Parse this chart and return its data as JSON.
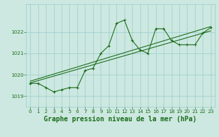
{
  "title": "Graphe pression niveau de la mer (hPa)",
  "bg_color": "#cce8e0",
  "grid_color": "#99cccc",
  "line_color": "#1a6b1a",
  "text_color": "#1a6b1a",
  "xlim": [
    -0.5,
    23.5
  ],
  "ylim": [
    1018.5,
    1023.3
  ],
  "yticks": [
    1019,
    1020,
    1021,
    1022
  ],
  "xticks": [
    0,
    1,
    2,
    3,
    4,
    5,
    6,
    7,
    8,
    9,
    10,
    11,
    12,
    13,
    14,
    15,
    16,
    17,
    18,
    19,
    20,
    21,
    22,
    23
  ],
  "hours": [
    0,
    1,
    2,
    3,
    4,
    5,
    6,
    7,
    8,
    9,
    10,
    11,
    12,
    13,
    14,
    15,
    16,
    17,
    18,
    19,
    20,
    21,
    22,
    23
  ],
  "pressure": [
    1019.6,
    1019.6,
    1019.4,
    1019.2,
    1019.3,
    1019.4,
    1019.4,
    1020.2,
    1020.3,
    1021.0,
    1021.35,
    1022.4,
    1022.55,
    1021.6,
    1021.15,
    1021.0,
    1022.15,
    1022.15,
    1021.6,
    1021.4,
    1021.4,
    1021.4,
    1021.95,
    1022.2
  ],
  "trend1_x": [
    0,
    23
  ],
  "trend1_y": [
    1019.62,
    1022.05
  ],
  "trend2_x": [
    0,
    23
  ],
  "trend2_y": [
    1019.7,
    1022.25
  ],
  "title_fontsize": 7.0,
  "tick_fontsize": 5.2
}
